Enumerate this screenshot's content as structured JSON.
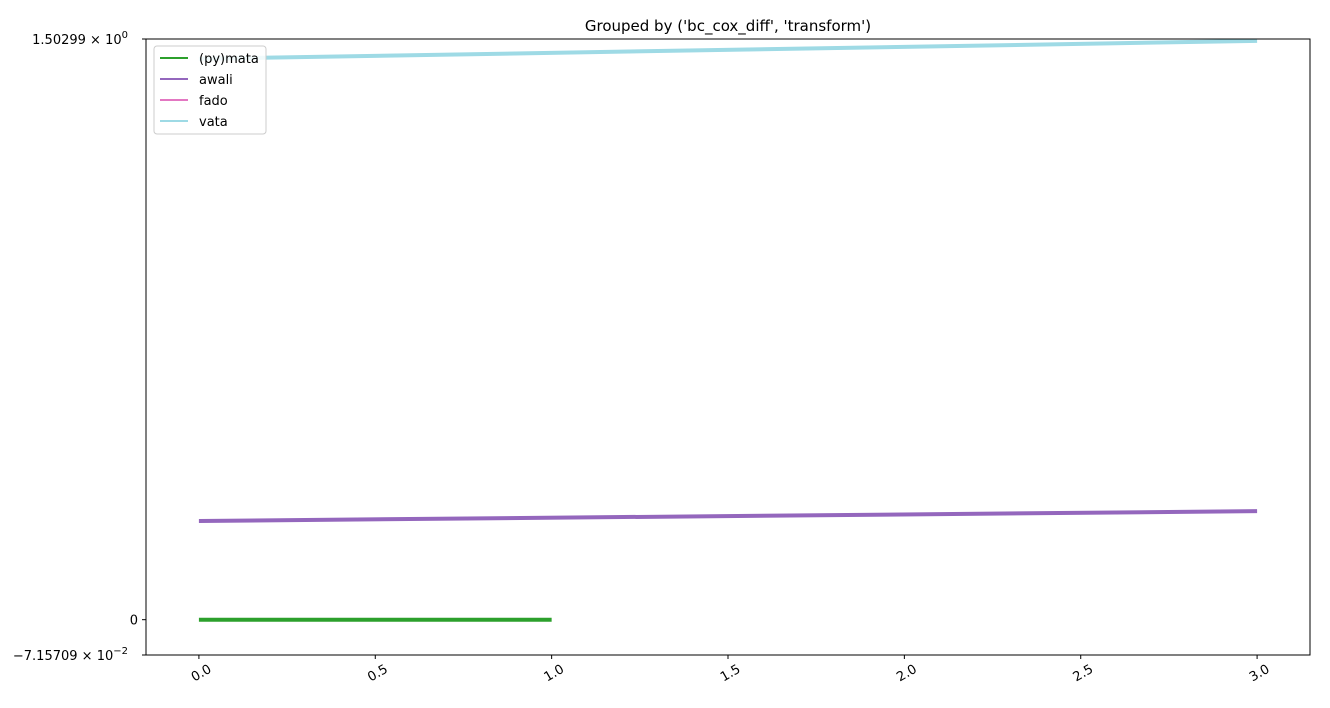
{
  "chart_data": {
    "type": "line",
    "title": "Grouped by ('bc_cox_diff', 'transform')",
    "xlabel": "",
    "ylabel": "",
    "xlim": [
      -0.15,
      3.15
    ],
    "x_ticks": [
      {
        "value": 0.0,
        "label": "0.0"
      },
      {
        "value": 0.5,
        "label": "0.5"
      },
      {
        "value": 1.0,
        "label": "1.0"
      },
      {
        "value": 1.5,
        "label": "1.5"
      },
      {
        "value": 2.0,
        "label": "2.0"
      },
      {
        "value": 2.5,
        "label": "2.5"
      },
      {
        "value": 3.0,
        "label": "3.0"
      }
    ],
    "y_scale": "symlog",
    "ylim": [
      -0.0715709,
      1.50299
    ],
    "y_ticks": [
      {
        "value": 1.50299,
        "mantissa": "1.50299",
        "exponent": "0"
      },
      {
        "value": 0,
        "label": "0"
      },
      {
        "value": -0.0715709,
        "mantissa": "−7.15709",
        "exponent": "−2"
      }
    ],
    "y_tick_times": "×",
    "y_tick_base": "10",
    "grid": false,
    "legend_position": "upper-left",
    "series": [
      {
        "name": "(py)mata",
        "color": "#2ca02c",
        "x": [
          0,
          1
        ],
        "y": [
          0,
          0
        ]
      },
      {
        "name": "awali",
        "color": "#9467bd",
        "x": [
          0,
          3
        ],
        "y": [
          0.2,
          0.22
        ]
      },
      {
        "name": "fado",
        "color": "#e377c2",
        "x": [],
        "y": []
      },
      {
        "name": "vata",
        "color": "#9edae5",
        "x": [
          0,
          3
        ],
        "y": [
          1.37,
          1.49
        ]
      }
    ]
  }
}
